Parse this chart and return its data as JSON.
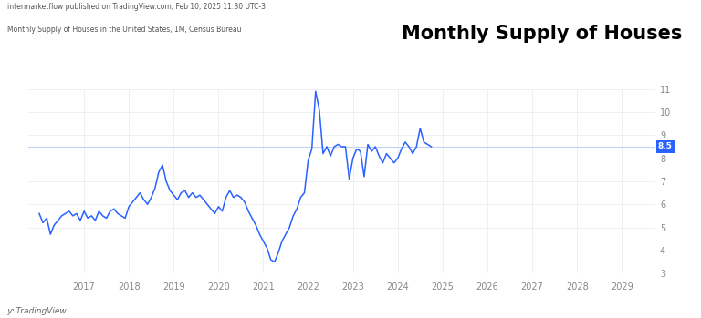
{
  "title": "Monthly Supply of Houses",
  "subtitle1": "intermarketflow published on TradingView.com, Feb 10, 2025 11:30 UTC-3",
  "subtitle2": "Monthly Supply of Houses in the United States, 1M, Census Bureau",
  "watermark": "TradingView",
  "line_color": "#2962ff",
  "bg_color": "#ffffff",
  "grid_color": "#e8eaf0",
  "hline_value": 8.5,
  "hline_color": "#c0d4f5",
  "hline_label_bg": "#2962ff",
  "hline_label_color": "#ffffff",
  "ylim": [
    3,
    11
  ],
  "yticks": [
    3,
    4,
    5,
    6,
    7,
    8,
    9,
    10,
    11
  ],
  "xlim_start": 2015.75,
  "xlim_end": 2029.75,
  "xtick_years": [
    2017,
    2018,
    2019,
    2020,
    2021,
    2022,
    2023,
    2024,
    2025,
    2026,
    2027,
    2028,
    2029
  ],
  "data": [
    [
      2016.0,
      5.6
    ],
    [
      2016.083,
      5.2
    ],
    [
      2016.167,
      5.4
    ],
    [
      2016.25,
      4.7
    ],
    [
      2016.333,
      5.1
    ],
    [
      2016.417,
      5.3
    ],
    [
      2016.5,
      5.5
    ],
    [
      2016.583,
      5.6
    ],
    [
      2016.667,
      5.7
    ],
    [
      2016.75,
      5.5
    ],
    [
      2016.833,
      5.6
    ],
    [
      2016.917,
      5.3
    ],
    [
      2017.0,
      5.7
    ],
    [
      2017.083,
      5.4
    ],
    [
      2017.167,
      5.5
    ],
    [
      2017.25,
      5.3
    ],
    [
      2017.333,
      5.7
    ],
    [
      2017.417,
      5.5
    ],
    [
      2017.5,
      5.4
    ],
    [
      2017.583,
      5.7
    ],
    [
      2017.667,
      5.8
    ],
    [
      2017.75,
      5.6
    ],
    [
      2017.833,
      5.5
    ],
    [
      2017.917,
      5.4
    ],
    [
      2018.0,
      5.9
    ],
    [
      2018.083,
      6.1
    ],
    [
      2018.167,
      6.3
    ],
    [
      2018.25,
      6.5
    ],
    [
      2018.333,
      6.2
    ],
    [
      2018.417,
      6.0
    ],
    [
      2018.5,
      6.3
    ],
    [
      2018.583,
      6.7
    ],
    [
      2018.667,
      7.4
    ],
    [
      2018.75,
      7.7
    ],
    [
      2018.833,
      7.0
    ],
    [
      2018.917,
      6.6
    ],
    [
      2019.0,
      6.4
    ],
    [
      2019.083,
      6.2
    ],
    [
      2019.167,
      6.5
    ],
    [
      2019.25,
      6.6
    ],
    [
      2019.333,
      6.3
    ],
    [
      2019.417,
      6.5
    ],
    [
      2019.5,
      6.3
    ],
    [
      2019.583,
      6.4
    ],
    [
      2019.667,
      6.2
    ],
    [
      2019.75,
      6.0
    ],
    [
      2019.833,
      5.8
    ],
    [
      2019.917,
      5.6
    ],
    [
      2020.0,
      5.9
    ],
    [
      2020.083,
      5.7
    ],
    [
      2020.167,
      6.3
    ],
    [
      2020.25,
      6.6
    ],
    [
      2020.333,
      6.3
    ],
    [
      2020.417,
      6.4
    ],
    [
      2020.5,
      6.3
    ],
    [
      2020.583,
      6.1
    ],
    [
      2020.667,
      5.7
    ],
    [
      2020.75,
      5.4
    ],
    [
      2020.833,
      5.1
    ],
    [
      2020.917,
      4.7
    ],
    [
      2021.0,
      4.4
    ],
    [
      2021.083,
      4.1
    ],
    [
      2021.167,
      3.6
    ],
    [
      2021.25,
      3.5
    ],
    [
      2021.333,
      3.9
    ],
    [
      2021.417,
      4.4
    ],
    [
      2021.5,
      4.7
    ],
    [
      2021.583,
      5.0
    ],
    [
      2021.667,
      5.5
    ],
    [
      2021.75,
      5.8
    ],
    [
      2021.833,
      6.3
    ],
    [
      2021.917,
      6.5
    ],
    [
      2022.0,
      7.9
    ],
    [
      2022.083,
      8.4
    ],
    [
      2022.167,
      10.9
    ],
    [
      2022.25,
      10.1
    ],
    [
      2022.333,
      8.2
    ],
    [
      2022.417,
      8.5
    ],
    [
      2022.5,
      8.1
    ],
    [
      2022.583,
      8.5
    ],
    [
      2022.667,
      8.6
    ],
    [
      2022.75,
      8.5
    ],
    [
      2022.833,
      8.5
    ],
    [
      2022.917,
      7.1
    ],
    [
      2023.0,
      8.0
    ],
    [
      2023.083,
      8.4
    ],
    [
      2023.167,
      8.3
    ],
    [
      2023.25,
      7.2
    ],
    [
      2023.333,
      8.6
    ],
    [
      2023.417,
      8.3
    ],
    [
      2023.5,
      8.5
    ],
    [
      2023.583,
      8.1
    ],
    [
      2023.667,
      7.8
    ],
    [
      2023.75,
      8.2
    ],
    [
      2023.833,
      8.0
    ],
    [
      2023.917,
      7.8
    ],
    [
      2024.0,
      8.0
    ],
    [
      2024.083,
      8.4
    ],
    [
      2024.167,
      8.7
    ],
    [
      2024.25,
      8.5
    ],
    [
      2024.333,
      8.2
    ],
    [
      2024.417,
      8.5
    ],
    [
      2024.5,
      9.3
    ],
    [
      2024.583,
      8.7
    ],
    [
      2024.667,
      8.6
    ],
    [
      2024.75,
      8.5
    ]
  ]
}
